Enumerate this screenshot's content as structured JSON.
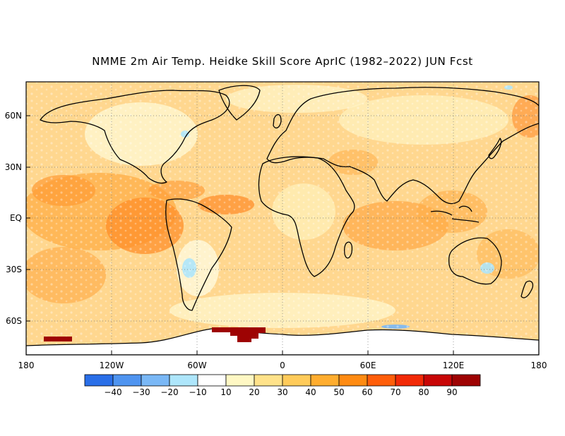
{
  "title": "NMME 2m Air Temp. Heidke Skill Score AprIC (1982–2022) JUN Fcst",
  "map": {
    "lon_labels": [
      "180",
      "120W",
      "60W",
      "0",
      "60E",
      "120E",
      "180"
    ],
    "lat_labels": [
      "60N",
      "30N",
      "EQ",
      "30S",
      "60S"
    ],
    "grid_style": "dotted"
  },
  "colorbar": {
    "bins": [
      {
        "color": "#2a6fe8"
      },
      {
        "color": "#4f94f0"
      },
      {
        "color": "#7ab8f6"
      },
      {
        "color": "#aee6fb"
      },
      {
        "color": "#ffffff"
      },
      {
        "color": "#fff8c4"
      },
      {
        "color": "#ffe28a"
      },
      {
        "color": "#ffcb5a"
      },
      {
        "color": "#ffad2f"
      },
      {
        "color": "#ff8b12"
      },
      {
        "color": "#ff5e0a"
      },
      {
        "color": "#f22a07"
      },
      {
        "color": "#c80606"
      },
      {
        "color": "#9e0303"
      }
    ],
    "labels": [
      "−40",
      "−30",
      "−20",
      "−10",
      "10",
      "20",
      "30",
      "40",
      "50",
      "60",
      "70",
      "80",
      "90"
    ]
  }
}
